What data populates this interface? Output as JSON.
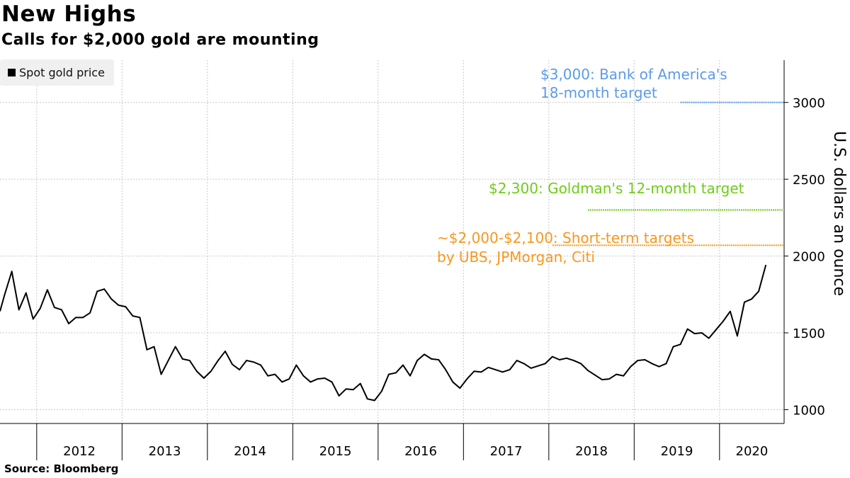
{
  "chart_data": {
    "type": "line",
    "title": "New Highs",
    "subtitle": "Calls for $2,000 gold are mounting",
    "ylabel": "U.S. dollars an ounce",
    "y_axis_side": "right",
    "ylim": [
      910,
      3275
    ],
    "yticks": [
      1000,
      1500,
      2000,
      2500,
      3000
    ],
    "xlim": [
      "2011-07",
      "2020-12"
    ],
    "xticks": [
      "2012",
      "2013",
      "2014",
      "2015",
      "2016",
      "2017",
      "2018",
      "2019",
      "2020"
    ],
    "grid": true,
    "legend_placement": "top-left",
    "series": [
      {
        "name": "Spot gold price",
        "color": "#000000",
        "points": [
          [
            "2011-08",
            1750
          ],
          [
            "2011-09",
            1900
          ],
          [
            "2011-10",
            1650
          ],
          [
            "2011-11",
            1760
          ],
          [
            "2011-12",
            1590
          ],
          [
            "2012-01",
            1660
          ],
          [
            "2012-02",
            1780
          ],
          [
            "2012-03",
            1665
          ],
          [
            "2012-04",
            1650
          ],
          [
            "2012-05",
            1560
          ],
          [
            "2012-06",
            1600
          ],
          [
            "2012-07",
            1600
          ],
          [
            "2012-08",
            1630
          ],
          [
            "2012-09",
            1770
          ],
          [
            "2012-10",
            1785
          ],
          [
            "2012-11",
            1720
          ],
          [
            "2012-12",
            1680
          ],
          [
            "2013-01",
            1670
          ],
          [
            "2013-02",
            1610
          ],
          [
            "2013-03",
            1600
          ],
          [
            "2013-04",
            1390
          ],
          [
            "2013-05",
            1410
          ],
          [
            "2013-06",
            1230
          ],
          [
            "2013-07",
            1320
          ],
          [
            "2013-08",
            1410
          ],
          [
            "2013-09",
            1330
          ],
          [
            "2013-10",
            1320
          ],
          [
            "2013-11",
            1250
          ],
          [
            "2013-12",
            1205
          ],
          [
            "2014-01",
            1250
          ],
          [
            "2014-02",
            1320
          ],
          [
            "2014-03",
            1380
          ],
          [
            "2014-04",
            1295
          ],
          [
            "2014-05",
            1260
          ],
          [
            "2014-06",
            1320
          ],
          [
            "2014-07",
            1310
          ],
          [
            "2014-08",
            1290
          ],
          [
            "2014-09",
            1220
          ],
          [
            "2014-10",
            1230
          ],
          [
            "2014-11",
            1180
          ],
          [
            "2014-12",
            1200
          ],
          [
            "2015-01",
            1290
          ],
          [
            "2015-02",
            1220
          ],
          [
            "2015-03",
            1180
          ],
          [
            "2015-04",
            1200
          ],
          [
            "2015-05",
            1205
          ],
          [
            "2015-06",
            1180
          ],
          [
            "2015-07",
            1090
          ],
          [
            "2015-08",
            1135
          ],
          [
            "2015-09",
            1130
          ],
          [
            "2015-10",
            1170
          ],
          [
            "2015-11",
            1070
          ],
          [
            "2015-12",
            1060
          ],
          [
            "2016-01",
            1120
          ],
          [
            "2016-02",
            1230
          ],
          [
            "2016-03",
            1240
          ],
          [
            "2016-04",
            1290
          ],
          [
            "2016-05",
            1220
          ],
          [
            "2016-06",
            1320
          ],
          [
            "2016-07",
            1360
          ],
          [
            "2016-08",
            1330
          ],
          [
            "2016-09",
            1325
          ],
          [
            "2016-10",
            1260
          ],
          [
            "2016-11",
            1180
          ],
          [
            "2016-12",
            1140
          ],
          [
            "2017-01",
            1200
          ],
          [
            "2017-02",
            1250
          ],
          [
            "2017-03",
            1245
          ],
          [
            "2017-04",
            1275
          ],
          [
            "2017-05",
            1260
          ],
          [
            "2017-06",
            1245
          ],
          [
            "2017-07",
            1260
          ],
          [
            "2017-08",
            1320
          ],
          [
            "2017-09",
            1300
          ],
          [
            "2017-10",
            1270
          ],
          [
            "2017-11",
            1285
          ],
          [
            "2017-12",
            1300
          ],
          [
            "2018-01",
            1345
          ],
          [
            "2018-02",
            1325
          ],
          [
            "2018-03",
            1335
          ],
          [
            "2018-04",
            1320
          ],
          [
            "2018-05",
            1300
          ],
          [
            "2018-06",
            1255
          ],
          [
            "2018-07",
            1225
          ],
          [
            "2018-08",
            1195
          ],
          [
            "2018-09",
            1200
          ],
          [
            "2018-10",
            1230
          ],
          [
            "2018-11",
            1220
          ],
          [
            "2018-12",
            1280
          ],
          [
            "2019-01",
            1320
          ],
          [
            "2019-02",
            1325
          ],
          [
            "2019-03",
            1300
          ],
          [
            "2019-04",
            1280
          ],
          [
            "2019-05",
            1300
          ],
          [
            "2019-06",
            1410
          ],
          [
            "2019-07",
            1425
          ],
          [
            "2019-08",
            1525
          ],
          [
            "2019-09",
            1495
          ],
          [
            "2019-10",
            1500
          ],
          [
            "2019-11",
            1465
          ],
          [
            "2019-12",
            1520
          ],
          [
            "2020-01",
            1575
          ],
          [
            "2020-02",
            1640
          ],
          [
            "2020-03",
            1480
          ],
          [
            "2020-04",
            1700
          ],
          [
            "2020-05",
            1720
          ],
          [
            "2020-06",
            1770
          ],
          [
            "2020-07",
            1940
          ]
        ]
      }
    ],
    "annotations": [
      {
        "lines": [
          "$3,000: Bank of America's",
          "18-month target"
        ],
        "value": 3000,
        "from": "2019-07",
        "color": "#5b9bea"
      },
      {
        "lines": [
          "$2,300: Goldman's 12-month target"
        ],
        "value": 2300,
        "from": "2018-06",
        "color": "#6fcc1a"
      },
      {
        "lines": [
          "~$2,000-$2,100: Short-term targets",
          "by UBS, JPMorgan, Citi"
        ],
        "value": 2070,
        "from": "2018-01",
        "color": "#f7971e"
      }
    ]
  },
  "legend": {
    "label": "Spot gold price"
  },
  "source": "Source: Bloomberg"
}
